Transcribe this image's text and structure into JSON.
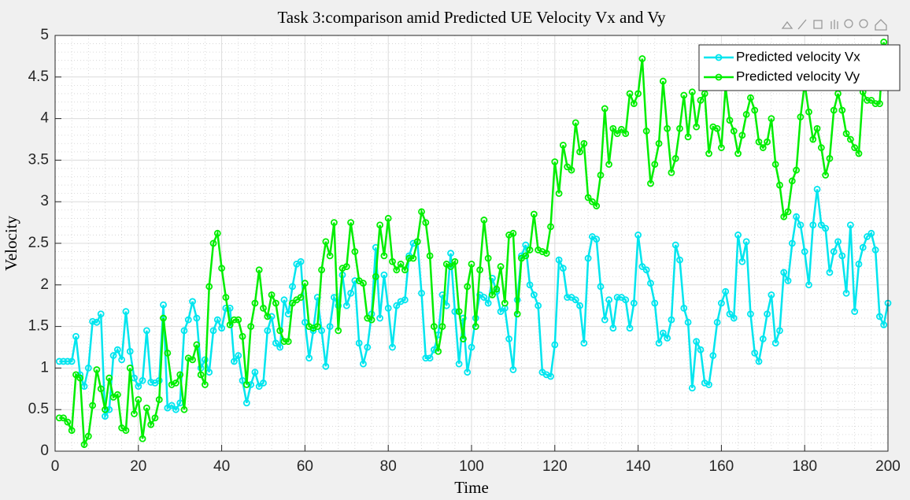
{
  "chart_data": {
    "type": "line",
    "title": "Task 3:comparison amid Predicted UE Velocity Vx and Vy",
    "xlabel": "Time",
    "ylabel": "Velocity",
    "x": [
      1,
      2,
      3,
      4,
      5,
      6,
      7,
      8,
      9,
      10,
      11,
      12,
      13,
      14,
      15,
      16,
      17,
      18,
      19,
      20,
      21,
      22,
      23,
      24,
      25,
      26,
      27,
      28,
      29,
      30,
      31,
      32,
      33,
      34,
      35,
      36,
      37,
      38,
      39,
      40,
      41,
      42,
      43,
      44,
      45,
      46,
      47,
      48,
      49,
      50,
      51,
      52,
      53,
      54,
      55,
      56,
      57,
      58,
      59,
      60,
      61,
      62,
      63,
      64,
      65,
      66,
      67,
      68,
      69,
      70,
      71,
      72,
      73,
      74,
      75,
      76,
      77,
      78,
      79,
      80,
      81,
      82,
      83,
      84,
      85,
      86,
      87,
      88,
      89,
      90,
      91,
      92,
      93,
      94,
      95,
      96,
      97,
      98,
      99,
      100,
      101,
      102,
      103,
      104,
      105,
      106,
      107,
      108,
      109,
      110,
      111,
      112,
      113,
      114,
      115,
      116,
      117,
      118,
      119,
      120,
      121,
      122,
      123,
      124,
      125,
      126,
      127,
      128,
      129,
      130,
      131,
      132,
      133,
      134,
      135,
      136,
      137,
      138,
      139,
      140,
      141,
      142,
      143,
      144,
      145,
      146,
      147,
      148,
      149,
      150,
      151,
      152,
      153,
      154,
      155,
      156,
      157,
      158,
      159,
      160,
      161,
      162,
      163,
      164,
      165,
      166,
      167,
      168,
      169,
      170,
      171,
      172,
      173,
      174,
      175,
      176,
      177,
      178,
      179,
      180,
      181,
      182,
      183,
      184,
      185,
      186,
      187,
      188,
      189,
      190,
      191,
      192,
      193,
      194,
      195,
      196,
      197,
      198,
      199,
      200
    ],
    "series": [
      {
        "name": "Predicted velocity Vx",
        "color": "#00e5ee",
        "values": [
          1.08,
          1.08,
          1.08,
          1.08,
          1.38,
          0.92,
          0.78,
          1.0,
          1.56,
          1.55,
          1.65,
          0.42,
          0.5,
          1.15,
          1.22,
          1.1,
          1.68,
          1.2,
          0.88,
          0.78,
          0.85,
          1.45,
          0.83,
          0.82,
          0.85,
          1.76,
          0.52,
          0.55,
          0.5,
          0.58,
          1.45,
          1.58,
          1.8,
          1.6,
          1.0,
          1.1,
          0.95,
          1.45,
          1.58,
          1.48,
          1.72,
          1.72,
          1.08,
          1.15,
          0.85,
          0.58,
          0.8,
          0.95,
          0.78,
          0.82,
          1.45,
          1.62,
          1.3,
          1.25,
          1.82,
          1.65,
          1.98,
          2.25,
          2.28,
          1.55,
          1.12,
          1.45,
          1.85,
          1.45,
          1.02,
          1.5,
          1.85,
          1.75,
          2.12,
          1.75,
          1.9,
          2.05,
          1.3,
          1.05,
          1.25,
          1.65,
          2.45,
          1.6,
          2.12,
          1.72,
          1.25,
          1.75,
          1.8,
          1.82,
          2.35,
          2.5,
          2.52,
          1.9,
          1.12,
          1.12,
          1.22,
          1.4,
          1.88,
          1.75,
          2.38,
          1.68,
          1.05,
          1.6,
          0.95,
          1.25,
          1.6,
          1.88,
          1.85,
          1.78,
          2.08,
          1.92,
          1.68,
          1.72,
          1.35,
          0.98,
          1.82,
          2.35,
          2.48,
          2.0,
          1.88,
          1.75,
          0.95,
          0.92,
          0.9,
          1.28,
          2.3,
          2.2,
          1.85,
          1.85,
          1.82,
          1.75,
          1.3,
          2.32,
          2.58,
          2.55,
          1.98,
          1.58,
          1.82,
          1.48,
          1.85,
          1.85,
          1.82,
          1.48,
          1.78,
          2.6,
          2.22,
          2.18,
          2.02,
          1.78,
          1.3,
          1.42,
          1.36,
          1.58,
          2.48,
          2.3,
          1.72,
          1.55,
          0.76,
          1.32,
          1.22,
          0.82,
          0.8,
          1.15,
          1.55,
          1.78,
          1.92,
          1.65,
          1.6,
          2.6,
          2.28,
          2.52,
          1.65,
          1.18,
          1.08,
          1.35,
          1.65,
          1.88,
          1.3,
          1.45,
          2.15,
          2.05,
          2.5,
          2.82,
          2.72,
          2.4,
          2.0,
          2.72,
          3.15,
          2.72,
          2.68,
          2.15,
          2.4,
          2.52,
          2.35,
          1.9,
          2.72,
          1.68,
          2.25,
          2.45,
          2.58,
          2.62,
          2.42,
          1.62,
          1.52,
          1.78
        ]
      },
      {
        "name": "Predicted velocity Vy",
        "color": "#00ee00",
        "values": [
          0.4,
          0.4,
          0.35,
          0.25,
          0.92,
          0.88,
          0.08,
          0.18,
          0.55,
          0.98,
          0.75,
          0.5,
          0.88,
          0.65,
          0.68,
          0.28,
          0.25,
          1.0,
          0.45,
          0.62,
          0.15,
          0.52,
          0.32,
          0.4,
          0.62,
          1.6,
          1.18,
          0.8,
          0.82,
          0.92,
          0.5,
          1.12,
          1.1,
          1.28,
          0.92,
          0.8,
          1.98,
          2.5,
          2.62,
          2.2,
          1.85,
          1.52,
          1.58,
          1.58,
          1.38,
          0.8,
          1.5,
          1.78,
          2.18,
          1.72,
          1.62,
          1.88,
          1.78,
          1.45,
          1.32,
          1.32,
          1.78,
          1.82,
          1.85,
          2.02,
          1.5,
          1.48,
          1.5,
          2.18,
          2.52,
          2.35,
          2.75,
          1.45,
          2.2,
          2.22,
          2.75,
          2.4,
          2.05,
          2.02,
          1.6,
          1.58,
          2.1,
          2.72,
          2.35,
          2.8,
          2.28,
          2.18,
          2.25,
          2.18,
          2.32,
          2.32,
          2.52,
          2.88,
          2.75,
          2.35,
          1.5,
          1.2,
          1.5,
          2.25,
          2.22,
          2.28,
          1.68,
          1.35,
          1.98,
          2.25,
          1.5,
          2.18,
          2.78,
          2.32,
          1.88,
          1.95,
          2.22,
          1.78,
          2.6,
          2.62,
          1.65,
          2.32,
          2.35,
          2.42,
          2.85,
          2.42,
          2.4,
          2.38,
          2.7,
          3.48,
          3.1,
          3.68,
          3.42,
          3.38,
          3.95,
          3.6,
          3.7,
          3.05,
          3.0,
          2.95,
          3.32,
          4.12,
          3.45,
          3.88,
          3.82,
          3.87,
          3.82,
          4.3,
          4.18,
          4.3,
          4.72,
          3.85,
          3.22,
          3.45,
          3.7,
          4.45,
          3.88,
          3.35,
          3.52,
          3.88,
          4.28,
          3.78,
          4.32,
          3.9,
          4.22,
          4.3,
          3.58,
          3.9,
          3.88,
          3.65,
          4.38,
          3.98,
          3.85,
          3.58,
          3.8,
          4.05,
          4.25,
          4.1,
          3.72,
          3.65,
          3.72,
          4.0,
          3.45,
          3.2,
          2.82,
          2.88,
          3.25,
          3.38,
          4.02,
          4.42,
          4.08,
          3.75,
          3.88,
          3.65,
          3.32,
          3.52,
          4.1,
          4.3,
          4.1,
          3.82,
          3.75,
          3.65,
          3.58,
          4.32,
          4.22,
          4.22,
          4.18,
          4.18,
          4.92,
          4.4
        ]
      }
    ],
    "xlim": [
      0,
      200
    ],
    "xticks": [
      0,
      20,
      40,
      60,
      80,
      100,
      120,
      140,
      160,
      180,
      200
    ],
    "ylim": [
      0,
      5
    ],
    "yticks": [
      0,
      0.5,
      1,
      1.5,
      2,
      2.5,
      3,
      3.5,
      4,
      4.5,
      5
    ],
    "grid": true,
    "minor_grid": true,
    "legend": "northeast"
  }
}
